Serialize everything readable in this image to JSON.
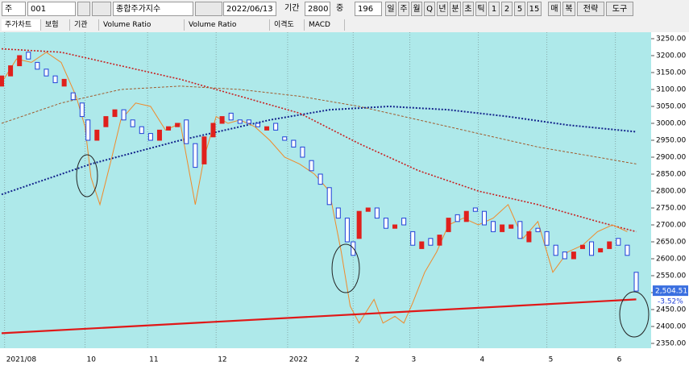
{
  "toolbar": {
    "type_label": "주",
    "code": "001",
    "name": "종합주가지수",
    "date": "2022/06/13",
    "period_label": "기간",
    "period": "2800",
    "mid_label": "중",
    "mid": "196",
    "intervals": [
      "일",
      "주",
      "월",
      "Q",
      "년",
      "분",
      "초",
      "틱",
      "1",
      "2",
      "5",
      "15"
    ],
    "buttons": [
      "매",
      "복",
      "전략",
      "도구"
    ]
  },
  "tabs": [
    "주가차트",
    "보험",
    "기관",
    "Volume Ratio",
    "Volume Ratio",
    "이격도",
    "MACD"
  ],
  "chart_data": {
    "type": "candlestick",
    "up_color": "#e0201c",
    "down_color": "#1f3fd8",
    "background": "#aee9ea",
    "xlim": [
      0,
      218
    ],
    "ylim": [
      2350,
      3250
    ],
    "xticks": [
      {
        "value": 1,
        "label": "2021/08"
      },
      {
        "value": 28,
        "label": "10"
      },
      {
        "value": 49,
        "label": "11"
      },
      {
        "value": 72,
        "label": "12"
      },
      {
        "value": 96,
        "label": "2022"
      },
      {
        "value": 118,
        "label": "2"
      },
      {
        "value": 137,
        "label": "3"
      },
      {
        "value": 160,
        "label": "4"
      },
      {
        "value": 183,
        "label": "5"
      },
      {
        "value": 206,
        "label": "6"
      }
    ],
    "yticks": [
      {
        "value": 3250,
        "label": "3250.00"
      },
      {
        "value": 3200,
        "label": "3200.00"
      },
      {
        "value": 3150,
        "label": "3150.00"
      },
      {
        "value": 3100,
        "label": "3100.00"
      },
      {
        "value": 3050,
        "label": "3050.00"
      },
      {
        "value": 3000,
        "label": "3000.00"
      },
      {
        "value": 2950,
        "label": "2950.00"
      },
      {
        "value": 2900,
        "label": "2900.00"
      },
      {
        "value": 2850,
        "label": "2850.00"
      },
      {
        "value": 2800,
        "label": "2800.00"
      },
      {
        "value": 2750,
        "label": "2750.00"
      },
      {
        "value": 2700,
        "label": "2700.00"
      },
      {
        "value": 2650,
        "label": "2650.00"
      },
      {
        "value": 2600,
        "label": "2600.00"
      },
      {
        "value": 2550,
        "label": "2550.00"
      },
      {
        "value": 2500,
        "label": "2500.00"
      },
      {
        "value": 2450,
        "label": "2450.00"
      },
      {
        "value": 2400,
        "label": "2400.00"
      },
      {
        "value": 2350,
        "label": "2350.00"
      }
    ],
    "x": [
      0,
      3,
      6,
      9,
      12,
      15,
      18,
      21,
      24,
      27,
      29,
      32,
      35,
      38,
      41,
      44,
      47,
      50,
      53,
      56,
      59,
      62,
      65,
      68,
      71,
      74,
      77,
      80,
      83,
      86,
      89,
      92,
      95,
      98,
      101,
      104,
      107,
      110,
      113,
      116,
      118,
      120,
      123,
      126,
      129,
      132,
      135,
      138,
      141,
      144,
      147,
      150,
      153,
      156,
      159,
      162,
      165,
      168,
      171,
      174,
      177,
      180,
      183,
      186,
      189,
      192,
      195,
      198,
      201,
      204,
      207,
      210,
      213
    ],
    "open": [
      3110,
      3140,
      3170,
      3210,
      3180,
      3160,
      3140,
      3110,
      3090,
      3060,
      3010,
      2950,
      2990,
      3020,
      3040,
      3010,
      2990,
      2970,
      2950,
      2980,
      2990,
      3010,
      2940,
      2880,
      2960,
      3000,
      3030,
      3010,
      3010,
      3000,
      2980,
      3000,
      2960,
      2950,
      2930,
      2890,
      2850,
      2810,
      2750,
      2720,
      2650,
      2660,
      2740,
      2750,
      2720,
      2690,
      2720,
      2680,
      2630,
      2660,
      2640,
      2680,
      2730,
      2710,
      2750,
      2740,
      2710,
      2680,
      2690,
      2710,
      2650,
      2690,
      2680,
      2640,
      2620,
      2600,
      2630,
      2650,
      2620,
      2630,
      2660,
      2640,
      2560
    ],
    "close": [
      3140,
      3170,
      3200,
      3190,
      3160,
      3140,
      3120,
      3130,
      3070,
      3020,
      2950,
      2980,
      3020,
      3040,
      3010,
      2990,
      2970,
      2950,
      2980,
      2990,
      3000,
      2940,
      2870,
      2960,
      3000,
      3020,
      3010,
      3000,
      3000,
      2990,
      2990,
      2980,
      2950,
      2930,
      2900,
      2860,
      2820,
      2760,
      2720,
      2650,
      2610,
      2740,
      2750,
      2720,
      2690,
      2700,
      2700,
      2640,
      2650,
      2640,
      2670,
      2720,
      2710,
      2740,
      2740,
      2700,
      2680,
      2700,
      2700,
      2660,
      2680,
      2680,
      2640,
      2610,
      2600,
      2620,
      2640,
      2610,
      2630,
      2650,
      2640,
      2610,
      2504.51
    ],
    "last_price_label": "2,504.51",
    "change_label": "-3.52%",
    "overlays": [
      {
        "color": "#14258c",
        "dash": "2,2",
        "width": 2,
        "x": [
          0,
          30,
          60,
          90,
          110,
          130,
          150,
          170,
          190,
          213
        ],
        "values": [
          2790,
          2880,
          2950,
          3010,
          3040,
          3050,
          3040,
          3020,
          2995,
          2975
        ]
      },
      {
        "color": "#c82020",
        "dash": "2,2",
        "width": 1.6,
        "x": [
          0,
          20,
          40,
          60,
          80,
          100,
          120,
          140,
          160,
          180,
          200,
          213
        ],
        "values": [
          3220,
          3210,
          3170,
          3130,
          3080,
          3030,
          2940,
          2860,
          2800,
          2760,
          2710,
          2680
        ]
      },
      {
        "color": "#a05a2c",
        "dash": "3,2",
        "width": 1,
        "x": [
          0,
          20,
          40,
          60,
          80,
          100,
          120,
          140,
          160,
          180,
          200,
          213
        ],
        "values": [
          3000,
          3060,
          3100,
          3110,
          3100,
          3080,
          3050,
          3010,
          2970,
          2930,
          2900,
          2880
        ]
      },
      {
        "color": "#f08a2a",
        "dash": "",
        "width": 1,
        "x": [
          0,
          5,
          10,
          15,
          20,
          25,
          28,
          30,
          33,
          37,
          40,
          45,
          50,
          55,
          60,
          65,
          68,
          72,
          76,
          80,
          85,
          90,
          95,
          100,
          105,
          110,
          114,
          117,
          120,
          125,
          128,
          132,
          135,
          138,
          142,
          146,
          150,
          155,
          160,
          165,
          170,
          175,
          180,
          185,
          190,
          195,
          200,
          205,
          210
        ],
        "values": [
          3120,
          3190,
          3180,
          3210,
          3180,
          3080,
          2990,
          2840,
          2760,
          2900,
          3010,
          3060,
          3050,
          2980,
          3000,
          2760,
          2900,
          3020,
          3000,
          3010,
          2990,
          2950,
          2900,
          2880,
          2850,
          2800,
          2620,
          2460,
          2410,
          2480,
          2410,
          2430,
          2410,
          2470,
          2560,
          2620,
          2700,
          2720,
          2700,
          2720,
          2760,
          2660,
          2710,
          2560,
          2620,
          2640,
          2680,
          2700,
          2680
        ]
      },
      {
        "color": "#e01818",
        "dash": "",
        "width": 2.2,
        "x": [
          0,
          213
        ],
        "values": [
          2380,
          2480
        ]
      }
    ]
  }
}
